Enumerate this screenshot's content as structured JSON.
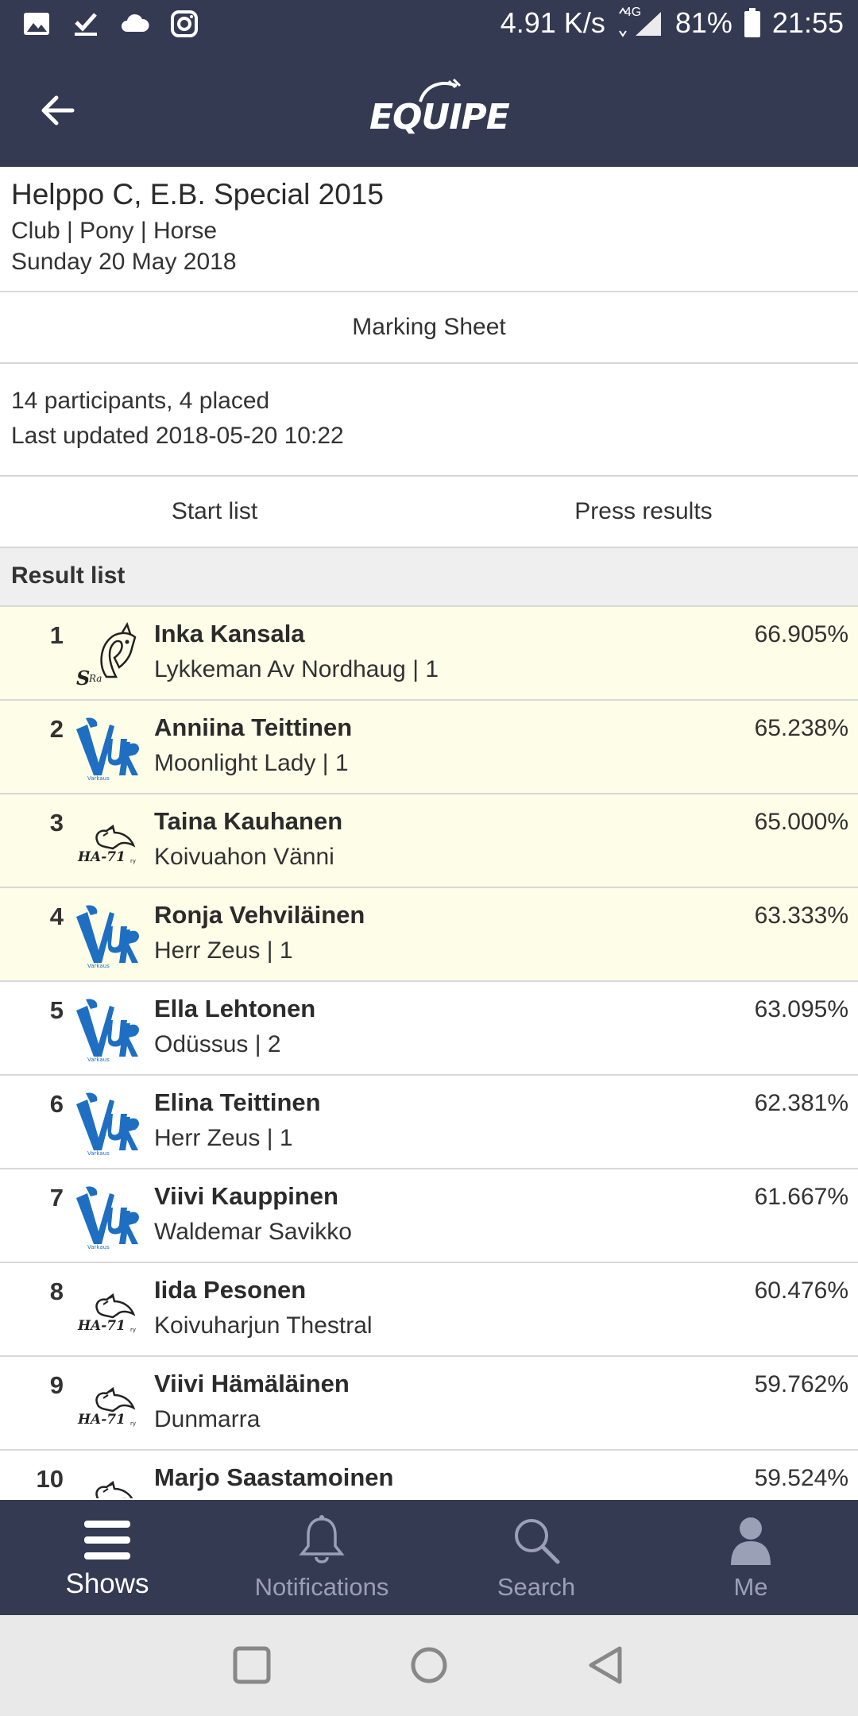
{
  "status_bar": {
    "net_speed": "4.91 K/s",
    "network": "4G",
    "battery": "81%",
    "time": "21:55"
  },
  "app_bar": {
    "logo_text": "EQUIPE"
  },
  "competition": {
    "title": "Helppo C, E.B. Special 2015",
    "classes": "Club | Pony | Horse",
    "date": "Sunday 20 May 2018"
  },
  "marking_sheet_label": "Marking Sheet",
  "summary": {
    "participants": "14 participants, 4 placed",
    "updated": "Last updated 2018-05-20 10:22"
  },
  "tabs": {
    "start_list": "Start list",
    "press_results": "Press results"
  },
  "result_list_title": "Result list",
  "results": [
    {
      "rank": "1",
      "rider": "Inka Kansala",
      "horse": "Lykkeman Av Nordhaug | 1",
      "score": "66.905%",
      "club": "sra-logo"
    },
    {
      "rank": "2",
      "rider": "Anniina Teittinen",
      "horse": "Moonlight Lady | 1",
      "score": "65.238%",
      "club": "vur-logo"
    },
    {
      "rank": "3",
      "rider": "Taina Kauhanen",
      "horse": "Koivuahon Vänni",
      "score": "65.000%",
      "club": "ha71-logo"
    },
    {
      "rank": "4",
      "rider": "Ronja Vehviläinen",
      "horse": "Herr Zeus | 1",
      "score": "63.333%",
      "club": "vur-logo"
    },
    {
      "rank": "5",
      "rider": "Ella Lehtonen",
      "horse": "Odüssus | 2",
      "score": "63.095%",
      "club": "vur-logo"
    },
    {
      "rank": "6",
      "rider": "Elina Teittinen",
      "horse": "Herr Zeus | 1",
      "score": "62.381%",
      "club": "vur-logo"
    },
    {
      "rank": "7",
      "rider": "Viivi Kauppinen",
      "horse": "Waldemar Savikko",
      "score": "61.667%",
      "club": "vur-logo"
    },
    {
      "rank": "8",
      "rider": "Iida Pesonen",
      "horse": "Koivuharjun Thestral",
      "score": "60.476%",
      "club": "ha71-logo"
    },
    {
      "rank": "9",
      "rider": "Viivi Hämäläinen",
      "horse": "Dunmarra",
      "score": "59.762%",
      "club": "ha71-logo"
    },
    {
      "rank": "10",
      "rider": "Marjo Saastamoinen",
      "horse": "",
      "score": "59.524%",
      "club": "ha71-logo"
    }
  ],
  "placed_count": 4,
  "bottom_nav": {
    "shows": "Shows",
    "notifications": "Notifications",
    "search": "Search",
    "me": "Me"
  },
  "colors": {
    "header_bg": "#353a53",
    "placed_bg": "#fdfde8",
    "vur_blue": "#1e6fc1"
  }
}
